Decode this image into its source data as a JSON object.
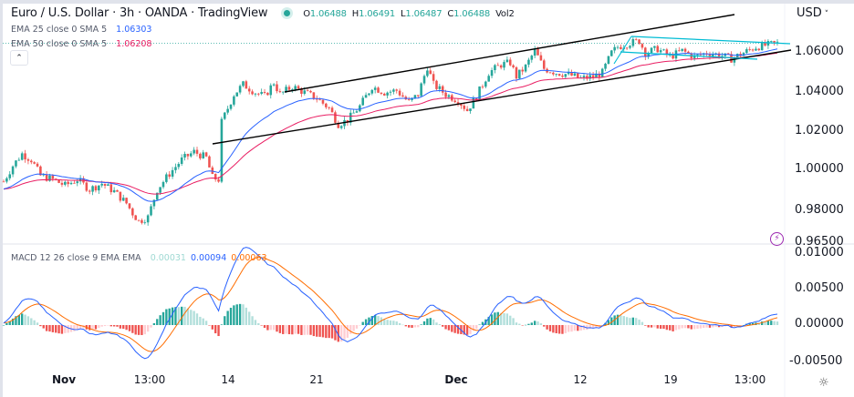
{
  "header": {
    "title": "Euro / U.S. Dollar · 3h · OANDA · TradingView",
    "ohlc": {
      "o_label": "O",
      "o": "1.06488",
      "h_label": "H",
      "h": "1.06491",
      "l_label": "L",
      "l": "1.06487",
      "c_label": "C",
      "c": "1.06488",
      "vol_label": "Vol",
      "vol": "2"
    },
    "collapse_icon": "chevron-up-icon"
  },
  "indicators": [
    {
      "label": "EMA 25 close 0 SMA 5",
      "value": "1.06303",
      "color": "#2962ff"
    },
    {
      "label": "EMA 50 close 0 SMA 5",
      "value": "1.06208",
      "color": "#e91e63"
    }
  ],
  "macd_legend": {
    "label": "MACD 12 26 close 9 EMA EMA",
    "histogram": "0.00031",
    "macd": "0.00094",
    "signal": "0.00063",
    "colors": {
      "histogram": "#b2dfdb",
      "macd": "#2962ff",
      "signal": "#ff6d00"
    }
  },
  "price_axis": {
    "currency": "USD",
    "labels": [
      "1.06000",
      "1.04000",
      "1.02000",
      "1.00000",
      "0.98000",
      "0.96500"
    ]
  },
  "macd_axis": {
    "labels": [
      "0.01000",
      "0.00500",
      "0.00000",
      "-0.00500"
    ]
  },
  "time_axis": {
    "labels": [
      {
        "text": "Nov",
        "bold": true
      },
      {
        "text": "13:00",
        "bold": false
      },
      {
        "text": "14",
        "bold": false
      },
      {
        "text": "21",
        "bold": false
      },
      {
        "text": "Dec",
        "bold": true
      },
      {
        "text": "12",
        "bold": false
      },
      {
        "text": "19",
        "bold": false
      },
      {
        "text": "13:00",
        "bold": false
      }
    ]
  },
  "icons": {
    "settings": "gear-icon",
    "alert": "lightning-icon"
  },
  "colors": {
    "up": "#26a69a",
    "down": "#ef5350",
    "ema25": "#2962ff",
    "ema50": "#e91e63",
    "channel": "#000000",
    "triangle": "#00bcd4",
    "hist_up_strong": "#26a69a",
    "hist_up_weak": "#b2dfdb",
    "hist_down_strong": "#ef5350",
    "hist_down_weak": "#ffcdd2"
  },
  "chart_data": [
    {
      "type": "candlestick",
      "title": "Euro / U.S. Dollar · 3h · OANDA",
      "xlabel": "",
      "ylabel": "USD",
      "x_ticks": [
        "Nov",
        "13:00",
        "14",
        "21",
        "Dec",
        "12",
        "19",
        "13:00"
      ],
      "y_ticks": [
        1.06,
        1.04,
        1.02,
        1.0,
        0.98,
        0.965
      ],
      "ylim": [
        0.963,
        1.072
      ],
      "grid": false,
      "price_path": [
        [
          0,
          0.995
        ],
        [
          3,
          1.003
        ],
        [
          6,
          1.009
        ],
        [
          9,
          1.006
        ],
        [
          12,
          0.998
        ],
        [
          16,
          0.996
        ],
        [
          20,
          0.993
        ],
        [
          24,
          0.996
        ],
        [
          28,
          0.991
        ],
        [
          32,
          0.994
        ],
        [
          36,
          0.99
        ],
        [
          40,
          0.984
        ],
        [
          42,
          0.979
        ],
        [
          44,
          0.975
        ],
        [
          47,
          0.977
        ],
        [
          50,
          0.991
        ],
        [
          54,
          0.999
        ],
        [
          58,
          1.006
        ],
        [
          62,
          1.01
        ],
        [
          66,
          1.007
        ],
        [
          68,
          0.997
        ],
        [
          70,
          0.996
        ],
        [
          71,
          1.025
        ],
        [
          75,
          1.039
        ],
        [
          78,
          1.044
        ],
        [
          82,
          1.04
        ],
        [
          85,
          1.038
        ],
        [
          88,
          1.045
        ],
        [
          90,
          1.039
        ],
        [
          94,
          1.043
        ],
        [
          98,
          1.04
        ],
        [
          102,
          1.037
        ],
        [
          106,
          1.032
        ],
        [
          109,
          1.024
        ],
        [
          112,
          1.026
        ],
        [
          116,
          1.033
        ],
        [
          120,
          1.043
        ],
        [
          124,
          1.04
        ],
        [
          128,
          1.041
        ],
        [
          132,
          1.035
        ],
        [
          135,
          1.039
        ],
        [
          138,
          1.053
        ],
        [
          140,
          1.044
        ],
        [
          144,
          1.039
        ],
        [
          148,
          1.036
        ],
        [
          151,
          1.031
        ],
        [
          154,
          1.038
        ],
        [
          158,
          1.05
        ],
        [
          162,
          1.054
        ],
        [
          165,
          1.055
        ],
        [
          167,
          1.048
        ],
        [
          170,
          1.053
        ],
        [
          173,
          1.061
        ],
        [
          176,
          1.052
        ],
        [
          180,
          1.05
        ],
        [
          184,
          1.049
        ],
        [
          188,
          1.047
        ],
        [
          192,
          1.048
        ],
        [
          195,
          1.05
        ],
        [
          198,
          1.06
        ],
        [
          200,
          1.063
        ],
        [
          204,
          1.065
        ],
        [
          207,
          1.066
        ],
        [
          209,
          1.06
        ],
        [
          213,
          1.062
        ],
        [
          217,
          1.058
        ],
        [
          221,
          1.061
        ],
        [
          225,
          1.058
        ],
        [
          229,
          1.06
        ],
        [
          233,
          1.059
        ],
        [
          237,
          1.057
        ],
        [
          241,
          1.06
        ],
        [
          245,
          1.063
        ],
        [
          249,
          1.064
        ],
        [
          252,
          1.0649
        ]
      ],
      "series": [
        {
          "name": "EMA 25 close 0 SMA 5",
          "last": 1.06303,
          "color": "#2962ff"
        },
        {
          "name": "EMA 50 close 0 SMA 5",
          "last": 1.06208,
          "color": "#e91e63"
        }
      ],
      "drawings": [
        {
          "type": "channel_upper",
          "from": [
            1.04,
            "Nov 17"
          ],
          "to": [
            1.071,
            "Dec 16"
          ]
        },
        {
          "type": "channel_lower",
          "from": [
            1.013,
            "Nov 14"
          ],
          "to": [
            1.061,
            "Dec 23"
          ]
        },
        {
          "type": "triangle_upper",
          "from": [
            1.066,
            "Dec 14"
          ],
          "to": [
            1.064,
            "Dec 23"
          ]
        },
        {
          "type": "triangle_lower",
          "from": [
            1.059,
            "Dec 14"
          ],
          "to": [
            1.056,
            "Dec 21"
          ]
        }
      ],
      "last_ohlc": {
        "open": 1.06488,
        "high": 1.06491,
        "low": 1.06487,
        "close": 1.06488,
        "volume": 2
      }
    },
    {
      "type": "macd",
      "title": "MACD 12 26 close 9 EMA EMA",
      "ylim": [
        -0.0065,
        0.0105
      ],
      "y_ticks": [
        0.01,
        0.005,
        0.0,
        -0.005
      ],
      "last": {
        "histogram": 0.00031,
        "macd": 0.00094,
        "signal": 0.00063
      },
      "series": [
        {
          "name": "MACD",
          "color": "#2962ff"
        },
        {
          "name": "Signal",
          "color": "#ff6d00"
        },
        {
          "name": "Histogram",
          "color": "#26a69a"
        }
      ]
    }
  ]
}
